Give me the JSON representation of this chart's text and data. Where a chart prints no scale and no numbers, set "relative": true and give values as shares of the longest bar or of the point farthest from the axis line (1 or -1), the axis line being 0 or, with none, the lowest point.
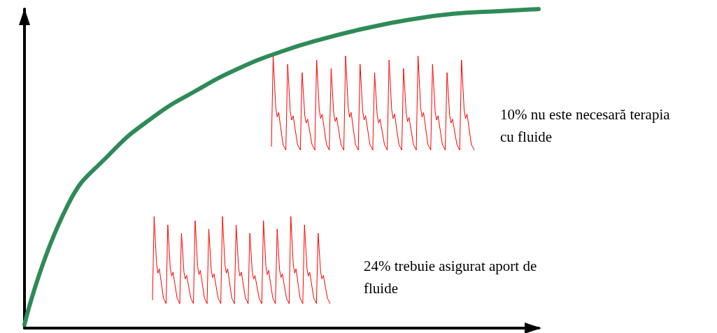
{
  "chart_data": {
    "type": "line",
    "relative": true,
    "categories": [
      null,
      null,
      null,
      null,
      null,
      null,
      null,
      null,
      null,
      null,
      null,
      null,
      null
    ],
    "series": [
      {
        "color": "#2e8b57",
        "values": [
          0.011,
          0.383,
          0.547,
          0.661,
          0.744,
          0.814,
          0.867,
          0.908,
          0.941,
          0.967,
          0.985,
          0.993,
          1
        ]
      }
    ],
    "marker": "none",
    "grid": false,
    "annotations": [
      "10% nu este necesară terapia\ncu fluide",
      "24% trebuie asigurat aport de\nfluide"
    ]
  }
}
